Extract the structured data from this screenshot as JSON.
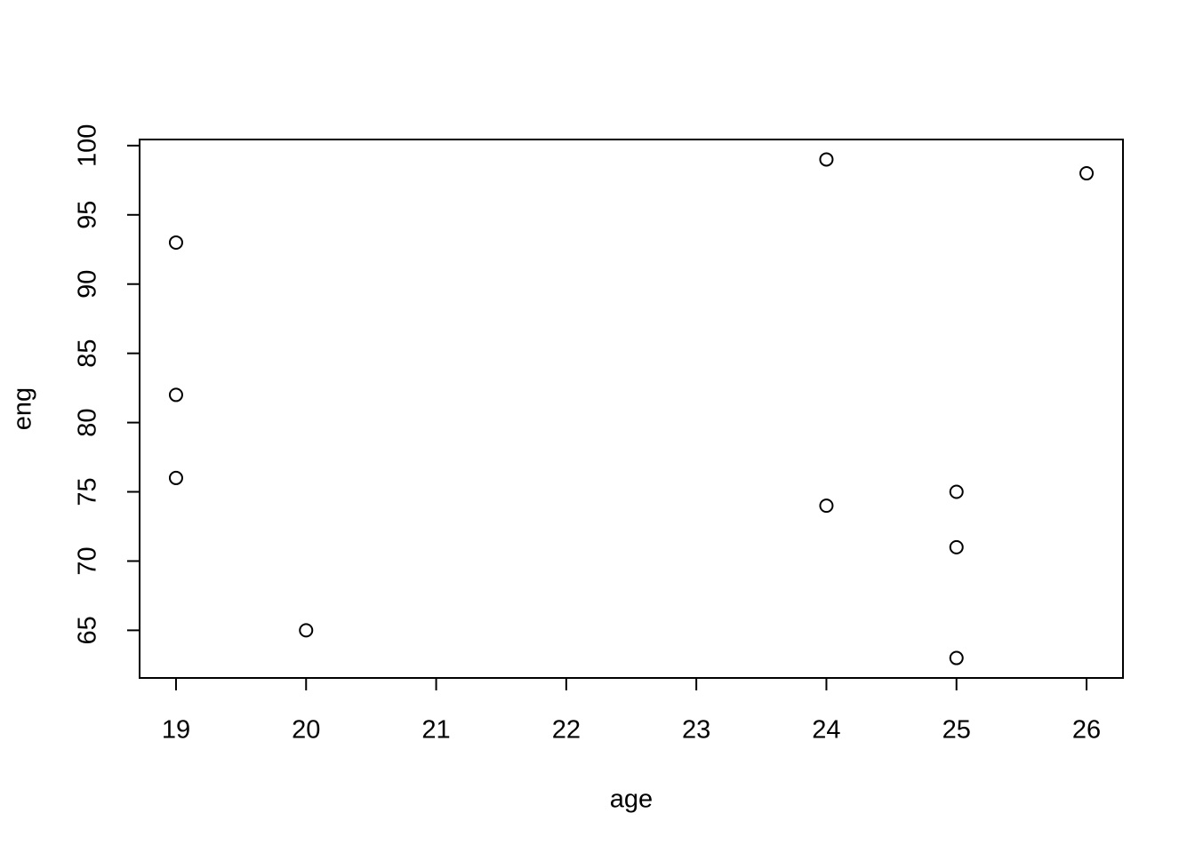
{
  "chart_data": {
    "type": "scatter",
    "x_label": "age",
    "y_label": "eng",
    "series": [
      {
        "x": [
          19,
          19,
          19,
          20,
          24,
          24,
          25,
          25,
          25,
          26
        ],
        "values": [
          93,
          82,
          76,
          65,
          99,
          74,
          75,
          71,
          63,
          98
        ],
        "color": "#000000"
      }
    ],
    "xlim": [
      18.72,
      26.28
    ],
    "xticks": [
      19,
      20,
      21,
      22,
      23,
      24,
      25,
      26
    ],
    "ylim": [
      61.56,
      100.44
    ],
    "yticks": [
      65,
      70,
      75,
      80,
      85,
      90,
      95,
      100
    ],
    "grid": false
  }
}
